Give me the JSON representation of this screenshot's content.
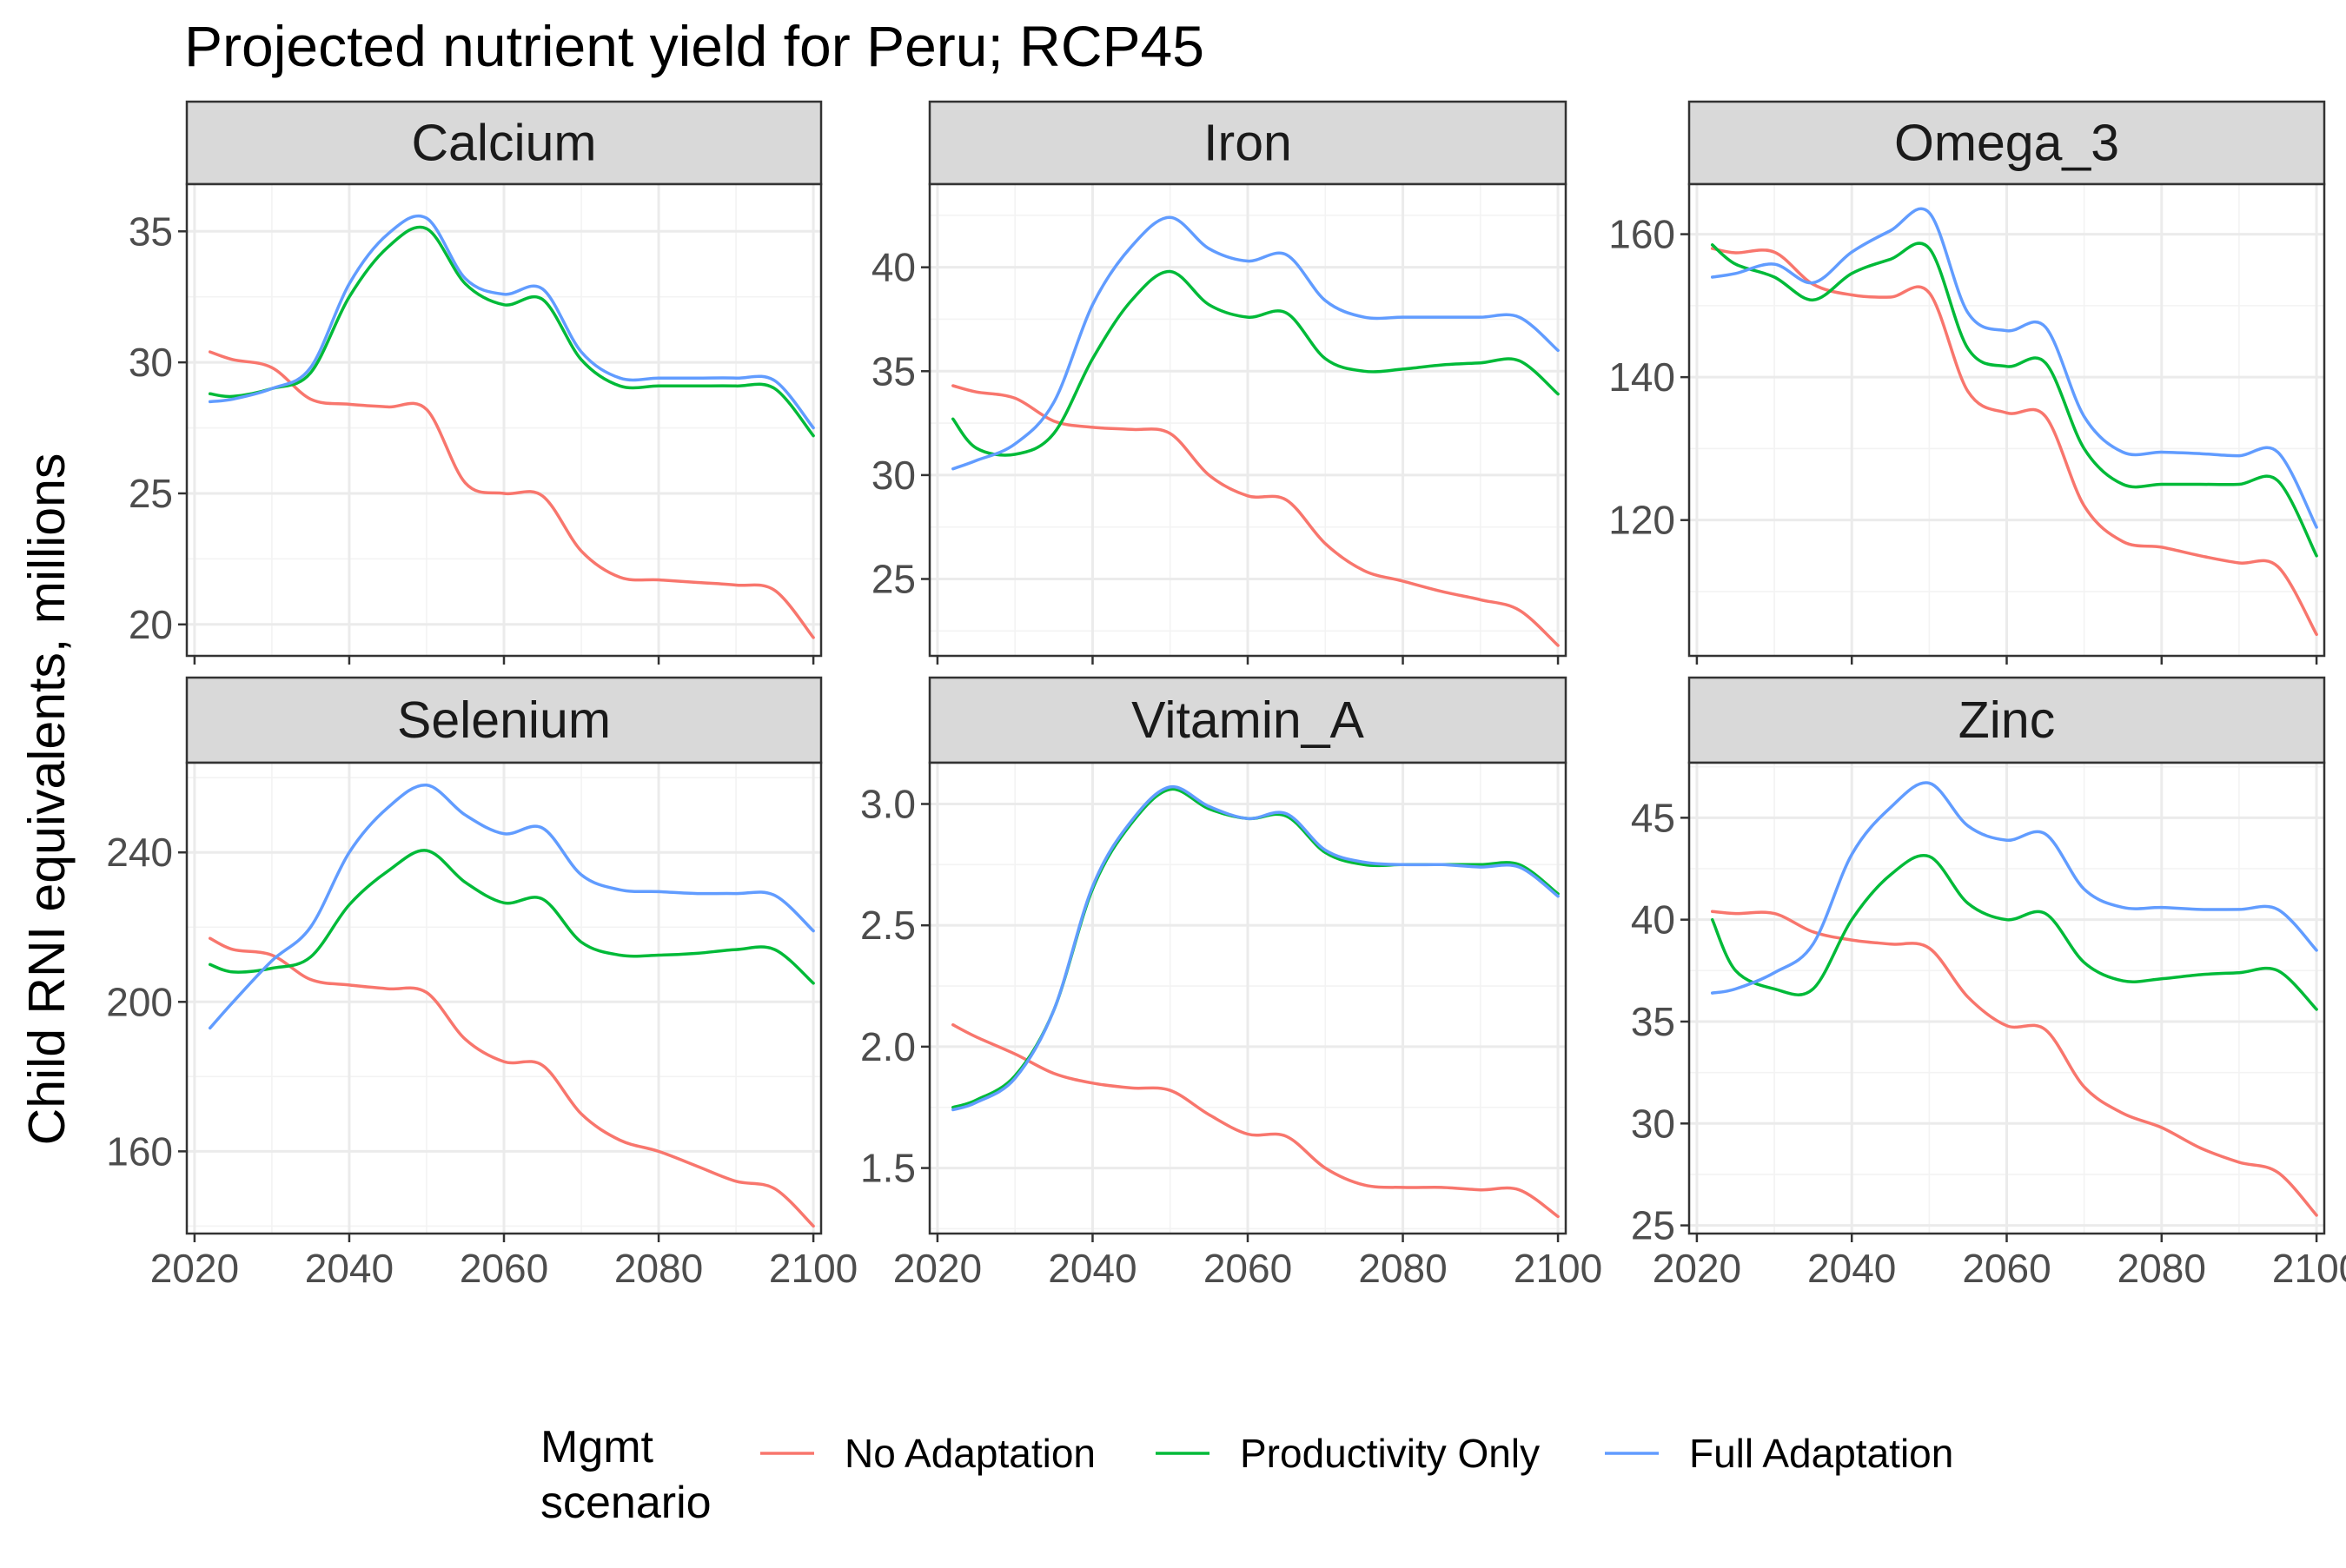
{
  "title": "Projected nutrient yield for Peru; RCP45",
  "ylabel": "Child RNI equivalents, millions",
  "legend": {
    "title_line1": "Mgmt",
    "title_line2": "scenario",
    "position": "bottom",
    "entries": [
      {
        "name": "No Adaptation",
        "color": "#F8766D"
      },
      {
        "name": "Productivity Only",
        "color": "#00BA38"
      },
      {
        "name": "Full Adaptation",
        "color": "#619CFF"
      }
    ]
  },
  "chart_data": {
    "type": "line",
    "facet": "wrap",
    "grid": true,
    "x": [
      2022,
      2025,
      2030,
      2035,
      2040,
      2045,
      2050,
      2055,
      2060,
      2065,
      2070,
      2075,
      2080,
      2085,
      2090,
      2095,
      2100
    ],
    "xticks": [
      2020,
      2040,
      2060,
      2080,
      2100
    ],
    "xlim": [
      2019,
      2101
    ],
    "panels": [
      {
        "name": "Calcium",
        "ylim": [
          18.8,
          36.8
        ],
        "yticks": [
          20,
          25,
          30,
          35
        ],
        "series": [
          {
            "name": "No Adaptation",
            "values": [
              30.4,
              30.1,
              29.8,
              28.6,
              28.4,
              28.3,
              28.2,
              25.4,
              25.0,
              24.9,
              22.8,
              21.8,
              21.7,
              21.6,
              21.5,
              21.3,
              19.5
            ]
          },
          {
            "name": "Productivity Only",
            "values": [
              28.8,
              28.7,
              29.0,
              29.6,
              32.5,
              34.4,
              35.1,
              33.0,
              32.2,
              32.4,
              30.1,
              29.1,
              29.1,
              29.1,
              29.1,
              29.0,
              27.2
            ]
          },
          {
            "name": "Full Adaptation",
            "values": [
              28.5,
              28.6,
              29.0,
              29.8,
              33.0,
              34.9,
              35.5,
              33.2,
              32.6,
              32.8,
              30.4,
              29.4,
              29.4,
              29.4,
              29.4,
              29.3,
              27.5
            ]
          }
        ]
      },
      {
        "name": "Iron",
        "ylim": [
          21.3,
          44.0
        ],
        "yticks": [
          25,
          30,
          35,
          40
        ],
        "series": [
          {
            "name": "No Adaptation",
            "values": [
              34.3,
              34.0,
              33.7,
              32.6,
              32.3,
              32.2,
              32.0,
              30.0,
              29.0,
              28.8,
              26.7,
              25.4,
              24.9,
              24.4,
              24.0,
              23.5,
              21.8
            ]
          },
          {
            "name": "Productivity Only",
            "values": [
              32.7,
              31.3,
              31.0,
              32.0,
              35.6,
              38.4,
              39.8,
              38.2,
              37.6,
              37.8,
              35.6,
              35.0,
              35.1,
              35.3,
              35.4,
              35.5,
              33.9
            ]
          },
          {
            "name": "Full Adaptation",
            "values": [
              30.3,
              30.7,
              31.5,
              33.5,
              38.2,
              41.0,
              42.4,
              40.9,
              40.3,
              40.6,
              38.4,
              37.6,
              37.6,
              37.6,
              37.6,
              37.6,
              36.0
            ]
          }
        ]
      },
      {
        "name": "Omega_3",
        "ylim": [
          101.0,
          167.0
        ],
        "yticks": [
          120,
          140,
          160
        ],
        "series": [
          {
            "name": "No Adaptation",
            "values": [
              158.0,
              157.4,
              157.5,
              153.0,
              151.5,
              151.2,
              151.8,
              138.0,
              135.0,
              134.5,
              122.0,
              117.0,
              116.2,
              115.0,
              114.0,
              113.5,
              104.0
            ]
          },
          {
            "name": "Productivity Only",
            "values": [
              158.5,
              155.8,
              154.0,
              150.8,
              154.5,
              156.5,
              158.0,
              144.0,
              141.5,
              142.0,
              130.0,
              125.0,
              125.0,
              125.0,
              125.0,
              125.5,
              115.0
            ]
          },
          {
            "name": "Full Adaptation",
            "values": [
              154.0,
              154.5,
              155.8,
              153.2,
              157.5,
              160.5,
              163.0,
              149.0,
              146.5,
              147.0,
              134.5,
              129.5,
              129.5,
              129.3,
              129.0,
              129.5,
              119.0
            ]
          }
        ]
      },
      {
        "name": "Selenium",
        "ylim": [
          138.0,
          264.0
        ],
        "yticks": [
          160,
          200,
          240
        ],
        "series": [
          {
            "name": "No Adaptation",
            "values": [
              217.0,
              214.0,
              212.5,
              206.0,
              204.5,
              203.5,
              202.5,
              190.0,
              184.0,
              183.0,
              170.0,
              163.0,
              160.0,
              156.0,
              152.0,
              150.0,
              140.0
            ]
          },
          {
            "name": "Productivity Only",
            "values": [
              210.0,
              208.0,
              209.0,
              212.0,
              226.0,
              235.0,
              240.5,
              232.0,
              226.5,
              227.5,
              216.0,
              212.5,
              212.5,
              213.0,
              214.0,
              214.0,
              205.0
            ]
          },
          {
            "name": "Full Adaptation",
            "values": [
              193.0,
              200.0,
              211.0,
              220.0,
              240.0,
              252.0,
              258.0,
              250.0,
              245.0,
              246.5,
              234.0,
              230.0,
              229.5,
              229.0,
              229.0,
              228.5,
              219.0
            ]
          }
        ]
      },
      {
        "name": "Vitamin_A",
        "ylim": [
          1.23,
          3.17
        ],
        "yticks": [
          1.5,
          2.0,
          2.5,
          3.0
        ],
        "series": [
          {
            "name": "No Adaptation",
            "values": [
              2.09,
              2.04,
              1.97,
              1.89,
              1.85,
              1.83,
              1.82,
              1.72,
              1.64,
              1.63,
              1.5,
              1.43,
              1.42,
              1.42,
              1.41,
              1.41,
              1.3
            ]
          },
          {
            "name": "Productivity Only",
            "values": [
              1.75,
              1.78,
              1.88,
              2.15,
              2.65,
              2.92,
              3.06,
              2.98,
              2.94,
              2.95,
              2.8,
              2.75,
              2.75,
              2.75,
              2.75,
              2.75,
              2.63
            ]
          },
          {
            "name": "Full Adaptation",
            "values": [
              1.74,
              1.77,
              1.87,
              2.15,
              2.66,
              2.93,
              3.07,
              2.99,
              2.94,
              2.96,
              2.81,
              2.76,
              2.75,
              2.75,
              2.74,
              2.74,
              2.62
            ]
          }
        ]
      },
      {
        "name": "Zinc",
        "ylim": [
          24.6,
          47.7
        ],
        "yticks": [
          25,
          30,
          35,
          40,
          45
        ],
        "series": [
          {
            "name": "No Adaptation",
            "values": [
              40.4,
              40.3,
              40.3,
              39.4,
              39.0,
              38.8,
              38.6,
              36.2,
              34.8,
              34.6,
              31.8,
              30.5,
              29.8,
              28.8,
              28.1,
              27.6,
              25.5
            ]
          },
          {
            "name": "Productivity Only",
            "values": [
              40.0,
              37.5,
              36.6,
              36.6,
              40.0,
              42.2,
              43.1,
              40.8,
              40.0,
              40.3,
              37.9,
              37.0,
              37.1,
              37.3,
              37.4,
              37.5,
              35.6
            ]
          },
          {
            "name": "Full Adaptation",
            "values": [
              36.4,
              36.6,
              37.4,
              38.8,
              43.2,
              45.5,
              46.7,
              44.6,
              43.9,
              44.2,
              41.5,
              40.6,
              40.6,
              40.5,
              40.5,
              40.5,
              38.5
            ]
          }
        ]
      }
    ]
  }
}
